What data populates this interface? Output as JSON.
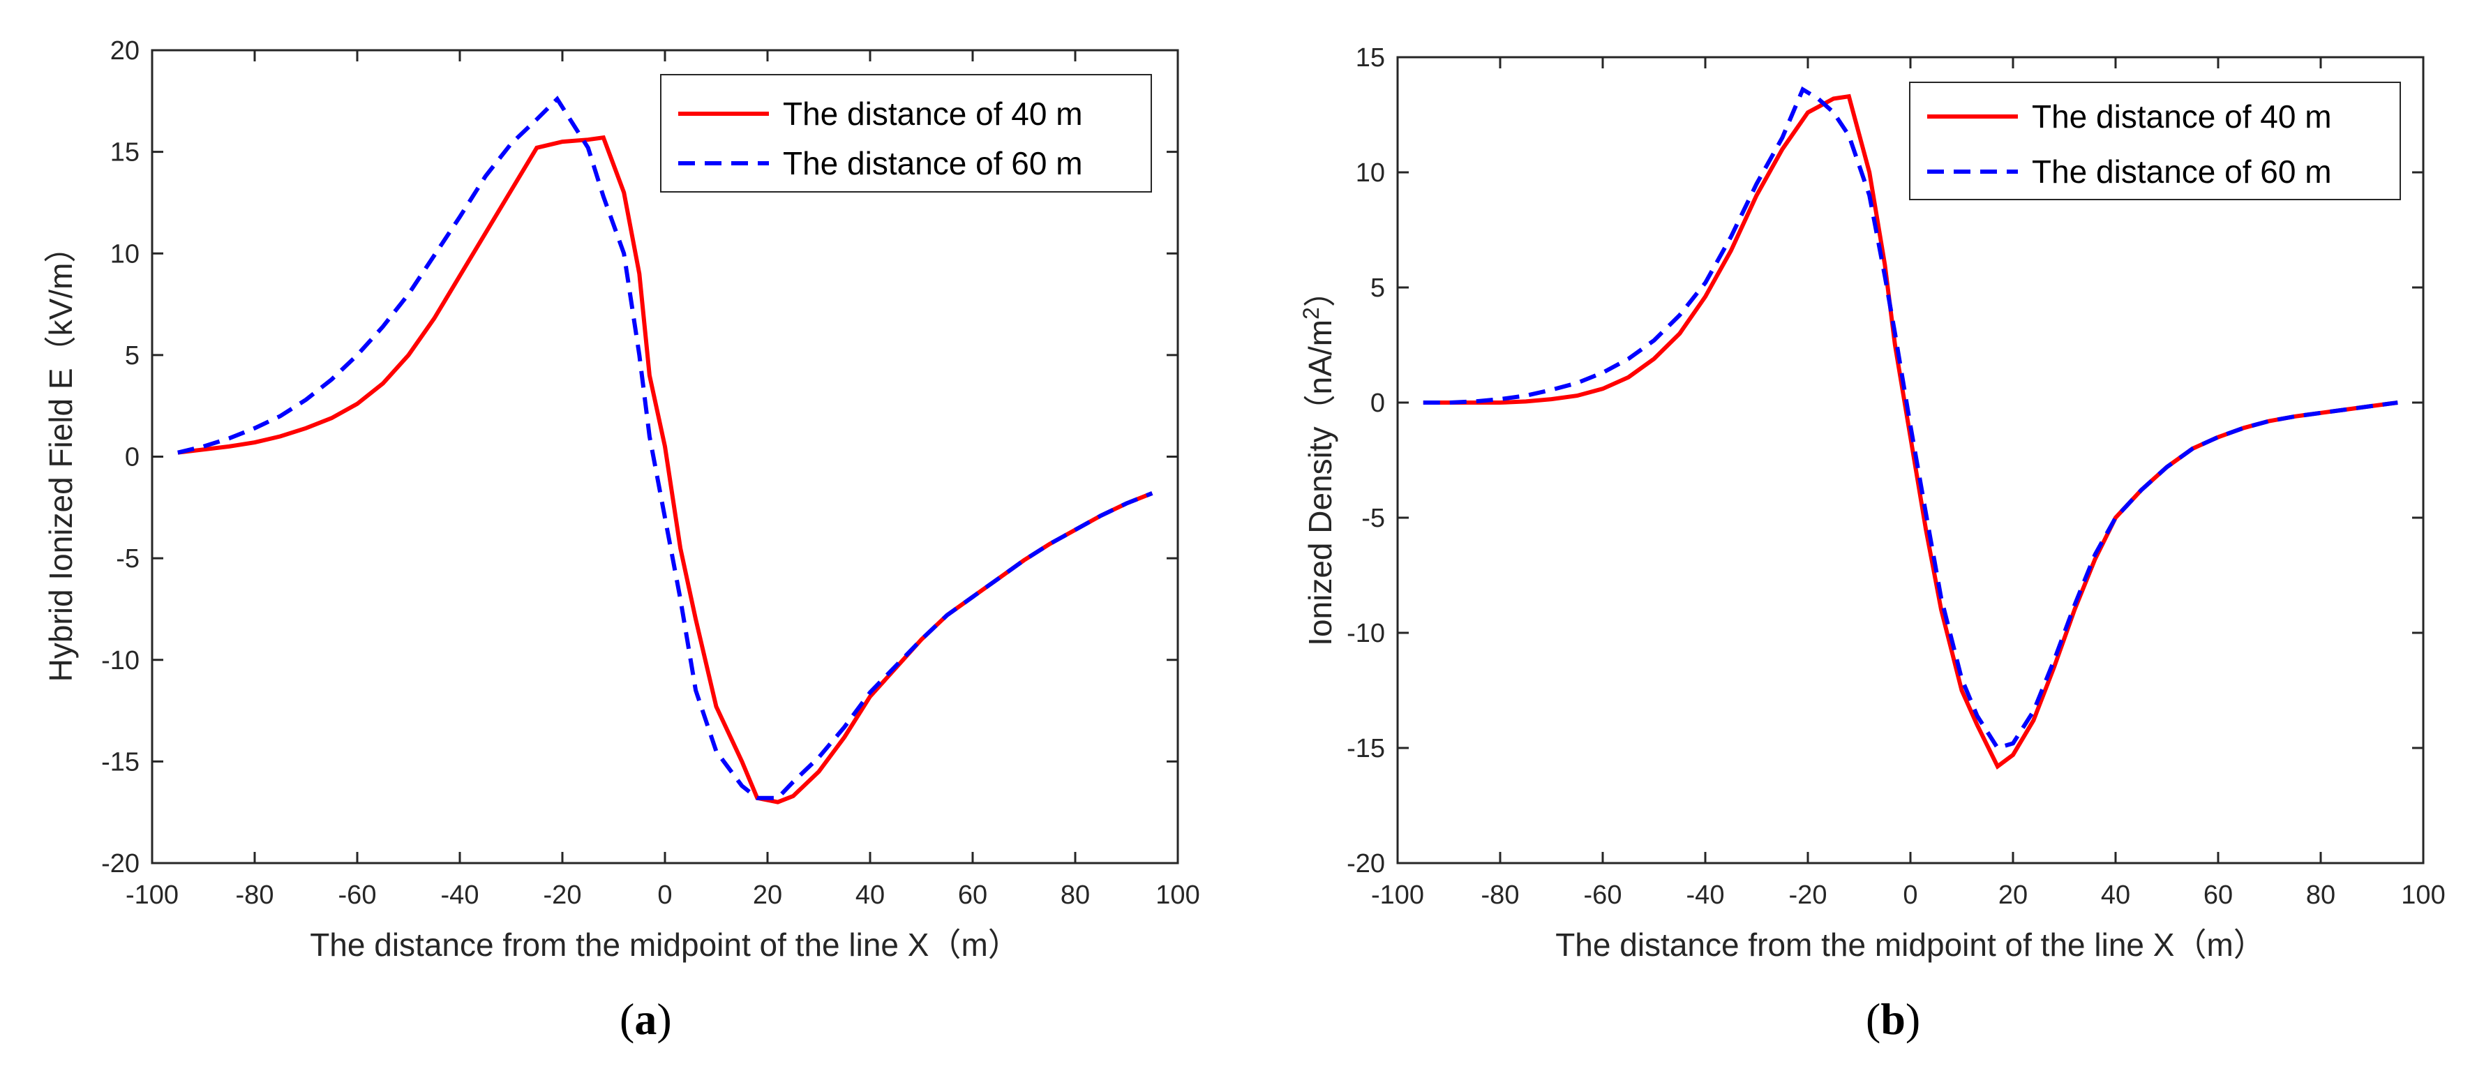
{
  "chart_data": [
    {
      "type": "line",
      "panel_caption": "a",
      "title": "",
      "xlabel": "The distance from the midpoint of the line X（m）",
      "ylabel": "Hybrid Ionized Field E（kV/m）",
      "xlim": [
        -100,
        100
      ],
      "ylim": [
        -20,
        20
      ],
      "xticks": [
        -100,
        -80,
        -60,
        -40,
        -20,
        0,
        20,
        40,
        60,
        80,
        100
      ],
      "yticks": [
        -20,
        -15,
        -10,
        -5,
        0,
        5,
        10,
        15,
        20
      ],
      "grid": false,
      "legend_position": "top-right",
      "series": [
        {
          "name": "The distance of 40 m",
          "color": "#ff0000",
          "style": "solid",
          "x": [
            -95,
            -90,
            -85,
            -80,
            -75,
            -70,
            -65,
            -60,
            -55,
            -50,
            -45,
            -40,
            -35,
            -30,
            -25,
            -20,
            -15,
            -12,
            -8,
            -5,
            -3,
            0,
            3,
            6,
            10,
            15,
            18,
            22,
            25,
            30,
            35,
            40,
            45,
            50,
            55,
            60,
            65,
            70,
            75,
            80,
            85,
            90,
            95
          ],
          "y": [
            0.2,
            0.35,
            0.5,
            0.7,
            1.0,
            1.4,
            1.9,
            2.6,
            3.6,
            5.0,
            6.8,
            8.9,
            11.0,
            13.1,
            15.2,
            15.5,
            15.6,
            15.7,
            13.0,
            9.0,
            4.0,
            0.5,
            -4.5,
            -8.0,
            -12.3,
            -15.0,
            -16.8,
            -17.0,
            -16.7,
            -15.5,
            -13.8,
            -11.8,
            -10.4,
            -9.0,
            -7.8,
            -6.9,
            -6.0,
            -5.1,
            -4.3,
            -3.6,
            -2.9,
            -2.3,
            -1.8
          ]
        },
        {
          "name": "The distance of 60 m",
          "color": "#0000ff",
          "style": "dashed",
          "x": [
            -95,
            -90,
            -85,
            -80,
            -75,
            -70,
            -65,
            -60,
            -55,
            -50,
            -45,
            -40,
            -35,
            -30,
            -25,
            -21,
            -18,
            -15,
            -12,
            -8,
            -5,
            -3,
            0,
            3,
            6,
            10,
            15,
            18,
            22,
            25,
            30,
            35,
            40,
            45,
            50,
            55,
            60,
            65,
            70,
            75,
            80,
            85,
            90,
            95
          ],
          "y": [
            0.2,
            0.5,
            0.9,
            1.4,
            2.0,
            2.8,
            3.8,
            5.0,
            6.4,
            8.0,
            9.9,
            11.8,
            13.8,
            15.4,
            16.6,
            17.6,
            16.4,
            15.2,
            12.8,
            10.0,
            5.0,
            1.0,
            -3.0,
            -7.0,
            -11.5,
            -14.5,
            -16.2,
            -16.8,
            -16.8,
            -16.0,
            -14.8,
            -13.3,
            -11.6,
            -10.3,
            -9.0,
            -7.8,
            -6.9,
            -6.0,
            -5.1,
            -4.3,
            -3.6,
            -2.9,
            -2.3,
            -1.8
          ]
        }
      ]
    },
    {
      "type": "line",
      "panel_caption": "b",
      "title": "",
      "xlabel": "The distance from the midpoint of the line X（m）",
      "ylabel": "Ionized Density（nA/m",
      "ylabel_superscript": "2",
      "ylabel_suffix": "）",
      "xlim": [
        -100,
        100
      ],
      "ylim": [
        -20,
        15
      ],
      "xticks": [
        -100,
        -80,
        -60,
        -40,
        -20,
        0,
        20,
        40,
        60,
        80,
        100
      ],
      "yticks": [
        -20,
        -15,
        -10,
        -5,
        0,
        5,
        10,
        15
      ],
      "grid": false,
      "legend_position": "top-right",
      "series": [
        {
          "name": "The distance of 40 m",
          "color": "#ff0000",
          "style": "solid",
          "x": [
            -95,
            -90,
            -85,
            -80,
            -75,
            -70,
            -65,
            -60,
            -55,
            -50,
            -45,
            -40,
            -35,
            -30,
            -25,
            -20,
            -15,
            -12,
            -8,
            -5,
            -3,
            0,
            3,
            6,
            10,
            13,
            17,
            20,
            24,
            28,
            32,
            36,
            40,
            45,
            50,
            55,
            60,
            65,
            70,
            75,
            80,
            85,
            90,
            95
          ],
          "y": [
            0,
            0,
            0,
            0,
            0.05,
            0.15,
            0.3,
            0.6,
            1.1,
            1.9,
            3.0,
            4.6,
            6.6,
            9.0,
            11.0,
            12.6,
            13.2,
            13.3,
            10.0,
            6.0,
            2.5,
            -1.5,
            -5.5,
            -9.0,
            -12.5,
            -14.0,
            -15.8,
            -15.3,
            -13.8,
            -11.5,
            -9.0,
            -6.8,
            -5.0,
            -3.8,
            -2.8,
            -2.0,
            -1.5,
            -1.1,
            -0.8,
            -0.6,
            -0.45,
            -0.3,
            -0.15,
            0
          ]
        },
        {
          "name": "The distance of 60 m",
          "color": "#0000ff",
          "style": "dashed",
          "x": [
            -95,
            -90,
            -85,
            -80,
            -75,
            -70,
            -65,
            -60,
            -55,
            -50,
            -45,
            -40,
            -35,
            -30,
            -25,
            -21,
            -18,
            -15,
            -12,
            -8,
            -5,
            -3,
            0,
            3,
            6,
            10,
            13,
            17,
            20,
            24,
            28,
            32,
            36,
            40,
            45,
            50,
            55,
            60,
            65,
            70,
            75,
            80,
            85,
            90,
            95
          ],
          "y": [
            0,
            0,
            0.05,
            0.15,
            0.3,
            0.55,
            0.85,
            1.3,
            1.9,
            2.7,
            3.8,
            5.2,
            7.2,
            9.5,
            11.5,
            13.6,
            13.2,
            12.6,
            11.6,
            9.0,
            5.5,
            3.0,
            -1.0,
            -4.8,
            -8.5,
            -12.0,
            -13.6,
            -15.0,
            -14.8,
            -13.4,
            -11.2,
            -8.8,
            -6.6,
            -5.0,
            -3.8,
            -2.8,
            -2.0,
            -1.5,
            -1.1,
            -0.8,
            -0.6,
            -0.45,
            -0.3,
            -0.15,
            0
          ]
        }
      ]
    }
  ]
}
